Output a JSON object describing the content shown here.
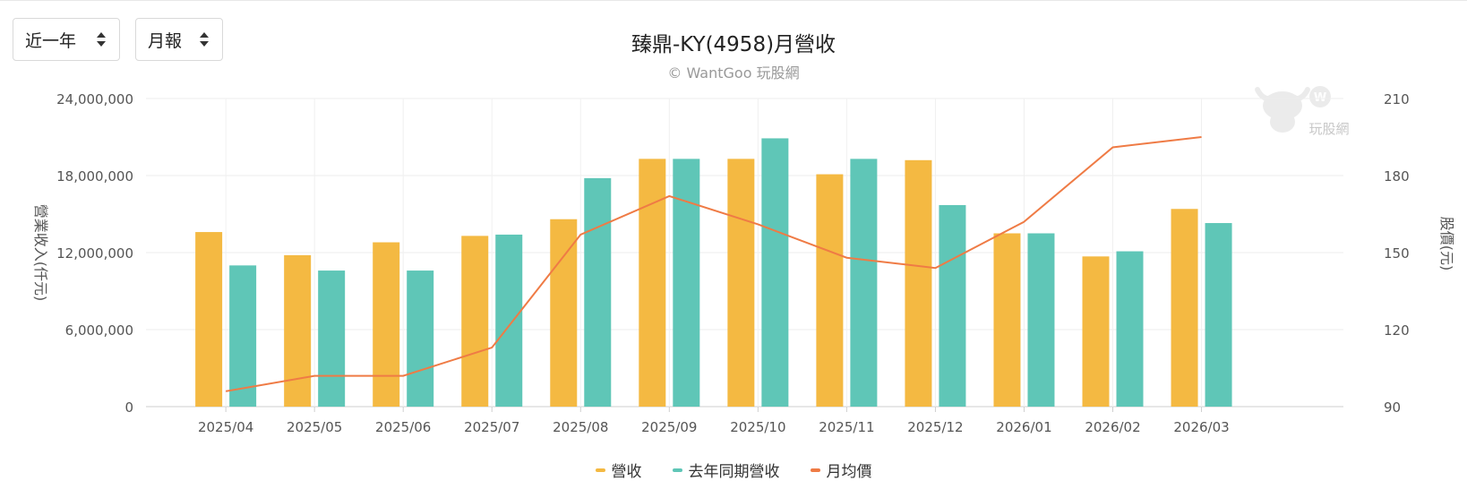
{
  "controls": {
    "period_label": "近一年",
    "report_label": "月報"
  },
  "colors": {
    "revenue": "#F4B942",
    "last_year": "#5FC6B7",
    "price": "#EF7B45"
  },
  "chart_data": {
    "type": "bar",
    "title": "臻鼎-KY(4958)月營收",
    "subtitle": "© WantGoo 玩股網",
    "watermark": "玩股網",
    "ylabel": "營業收入(仟元)",
    "y2label": "股價(元)",
    "ylim": [
      0,
      24000000
    ],
    "y2lim": [
      90,
      210
    ],
    "yticks": [
      "0",
      "6,000,000",
      "12,000,000",
      "18,000,000",
      "24,000,000"
    ],
    "y2ticks": [
      "90",
      "120",
      "150",
      "180",
      "210"
    ],
    "categories": [
      "2025/04",
      "2025/05",
      "2025/06",
      "2025/07",
      "2025/08",
      "2025/09",
      "2025/10",
      "2025/11",
      "2025/12",
      "2026/01",
      "2026/02",
      "2026/03"
    ],
    "series": [
      {
        "name": "營收",
        "type": "bar",
        "values": [
          13600000,
          11800000,
          12800000,
          13300000,
          14600000,
          19300000,
          19300000,
          18100000,
          19200000,
          13500000,
          11700000,
          15400000
        ]
      },
      {
        "name": "去年同期營收",
        "type": "bar",
        "values": [
          11000000,
          10600000,
          10600000,
          13400000,
          17800000,
          19300000,
          20900000,
          19300000,
          15700000,
          13500000,
          12100000,
          14300000
        ]
      },
      {
        "name": "月均價",
        "type": "line",
        "axis": "right",
        "values": [
          96,
          102,
          102,
          113,
          157,
          172,
          161,
          148,
          144,
          162,
          191,
          195
        ]
      }
    ],
    "legend_position": "bottom-center",
    "grid": true
  }
}
